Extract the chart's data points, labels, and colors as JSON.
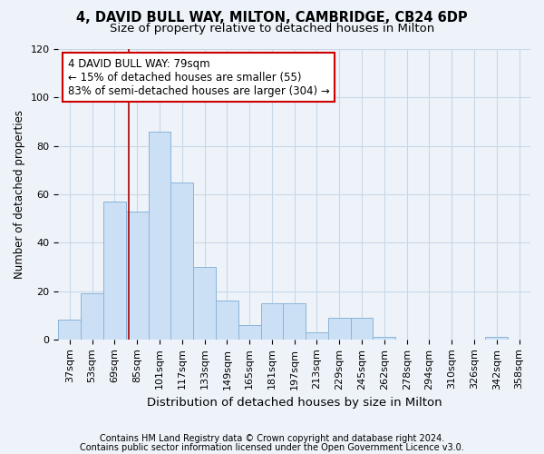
{
  "title1": "4, DAVID BULL WAY, MILTON, CAMBRIDGE, CB24 6DP",
  "title2": "Size of property relative to detached houses in Milton",
  "xlabel": "Distribution of detached houses by size in Milton",
  "ylabel": "Number of detached properties",
  "categories": [
    "37sqm",
    "53sqm",
    "69sqm",
    "85sqm",
    "101sqm",
    "117sqm",
    "133sqm",
    "149sqm",
    "165sqm",
    "181sqm",
    "197sqm",
    "213sqm",
    "229sqm",
    "245sqm",
    "262sqm",
    "278sqm",
    "294sqm",
    "310sqm",
    "326sqm",
    "342sqm",
    "358sqm"
  ],
  "values": [
    8,
    19,
    57,
    53,
    86,
    65,
    30,
    16,
    6,
    15,
    15,
    3,
    9,
    9,
    1,
    0,
    0,
    0,
    0,
    1,
    0
  ],
  "bar_color": "#cce0f5",
  "bar_edge_color": "#8ab4d8",
  "grid_color": "#c8d8e8",
  "background_color": "#eef3f9",
  "annotation_line1": "4 DAVID BULL WAY: 79sqm",
  "annotation_line2": "← 15% of detached houses are smaller (55)",
  "annotation_line3": "83% of semi-detached houses are larger (304) →",
  "annotation_box_color": "#ffffff",
  "annotation_box_edge_color": "#cc0000",
  "vline_color": "#aa0000",
  "ylim": [
    0,
    120
  ],
  "yticks": [
    0,
    20,
    40,
    60,
    80,
    100,
    120
  ],
  "footnote1": "Contains HM Land Registry data © Crown copyright and database right 2024.",
  "footnote2": "Contains public sector information licensed under the Open Government Licence v3.0.",
  "title1_fontsize": 10.5,
  "title2_fontsize": 9.5,
  "xlabel_fontsize": 9.5,
  "ylabel_fontsize": 8.5,
  "tick_fontsize": 8,
  "annotation_fontsize": 8.5,
  "footnote_fontsize": 7,
  "bar_width": 1.0,
  "vline_index": 3.0
}
